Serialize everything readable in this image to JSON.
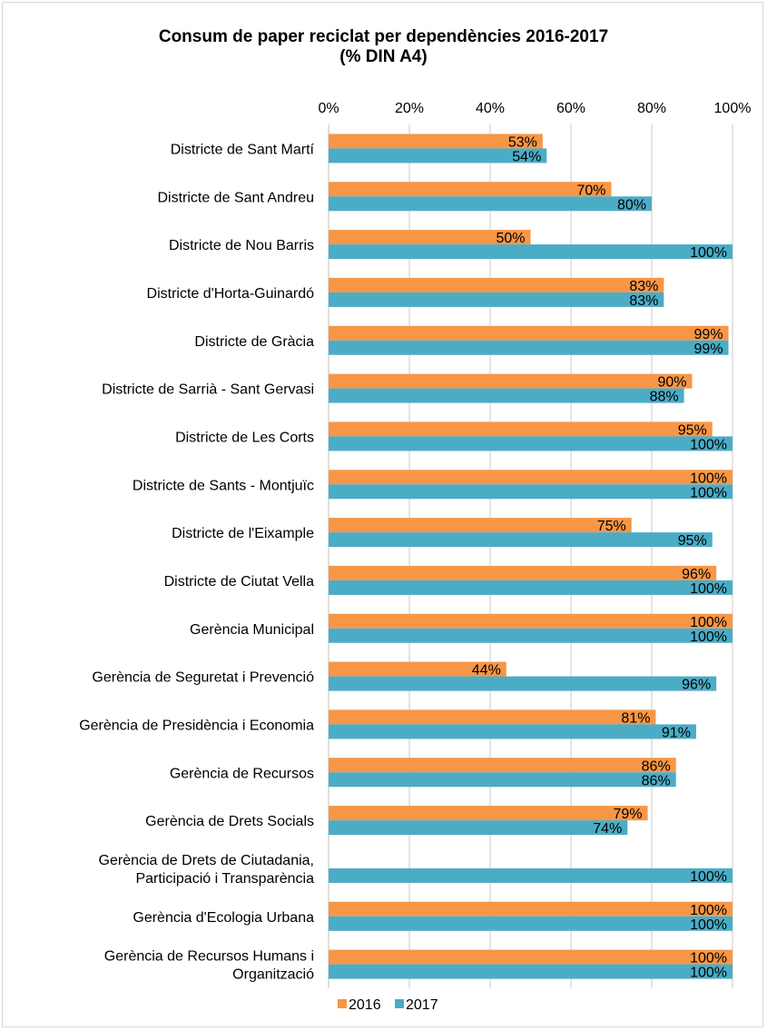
{
  "chart_data": {
    "type": "bar",
    "orientation": "horizontal",
    "title": "Consum de paper reciclat per dependències 2016-2017",
    "subtitle": "(% DIN A4)",
    "xlim": [
      0,
      100
    ],
    "x_ticks": [
      "0%",
      "20%",
      "40%",
      "60%",
      "80%",
      "100%"
    ],
    "x_tick_values": [
      0,
      20,
      40,
      60,
      80,
      100
    ],
    "x_axis_position": "top",
    "grid": true,
    "legend_position": "bottom",
    "categories": [
      [
        "Districte de Sant Martí"
      ],
      [
        "Districte de Sant Andreu"
      ],
      [
        "Districte de Nou Barris"
      ],
      [
        "Districte d'Horta-Guinardó"
      ],
      [
        "Districte de Gràcia"
      ],
      [
        "Districte de Sarrià - Sant Gervasi"
      ],
      [
        "Districte de Les Corts"
      ],
      [
        "Districte de Sants - Montjuïc"
      ],
      [
        "Districte de l'Eixample"
      ],
      [
        "Districte de Ciutat Vella"
      ],
      [
        "Gerència Municipal"
      ],
      [
        "Gerència de Seguretat i Prevenció"
      ],
      [
        "Gerència de Presidència i Economia"
      ],
      [
        "Gerència de Recursos"
      ],
      [
        "Gerència de Drets Socials"
      ],
      [
        "Gerència de Drets de Ciutadania,",
        "Participació i Transparència"
      ],
      [
        "Gerència d'Ecologia Urbana"
      ],
      [
        "Gerència de Recursos Humans i",
        "Organització"
      ]
    ],
    "series": [
      {
        "name": "2016",
        "color": "#f79646",
        "values": [
          53,
          70,
          50,
          83,
          99,
          90,
          95,
          100,
          75,
          96,
          100,
          44,
          81,
          86,
          79,
          null,
          100,
          100
        ],
        "labels": [
          "53%",
          "70%",
          "50%",
          "83%",
          "99%",
          "90%",
          "95%",
          "100%",
          "75%",
          "96%",
          "100%",
          "44%",
          "81%",
          "86%",
          "79%",
          null,
          "100%",
          "100%"
        ]
      },
      {
        "name": "2017",
        "color": "#4bacc6",
        "values": [
          54,
          80,
          100,
          83,
          99,
          88,
          100,
          100,
          95,
          100,
          100,
          96,
          91,
          86,
          74,
          100,
          100,
          100
        ],
        "labels": [
          "54%",
          "80%",
          "100%",
          "83%",
          "99%",
          "88%",
          "100%",
          "100%",
          "95%",
          "100%",
          "100%",
          "96%",
          "91%",
          "86%",
          "74%",
          "100%",
          "100%",
          "100%"
        ]
      }
    ]
  }
}
